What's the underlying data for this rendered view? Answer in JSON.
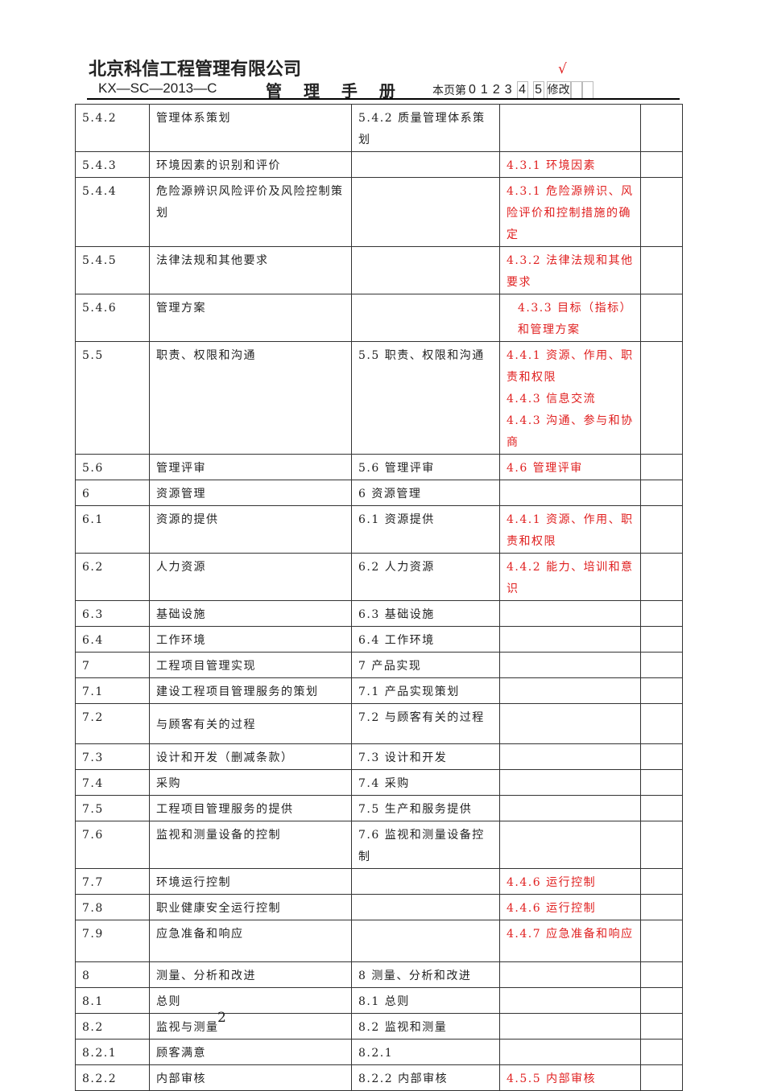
{
  "header": {
    "company": "北京科信工程管理有限公司",
    "code": "KX—SC—2013—C",
    "manual_title": "管 理 手 册",
    "revision_label": "本页第",
    "revision_digits": [
      "0",
      "1",
      "2",
      "3",
      "4",
      "5"
    ],
    "revision_suffix": "修改",
    "check_mark": "√"
  },
  "table": {
    "rows": [
      [
        "5.4.2",
        "管理体系策划",
        "5.4.2 质量管理体系策划",
        ""
      ],
      [
        "5.4.3",
        "环境因素的识别和评价",
        "",
        "4.3.1 环境因素"
      ],
      [
        "5.4.4",
        "危险源辨识风险评价及风险控制策划",
        "",
        "4.3.1 危险源辨识、风险评价和控制措施的确定"
      ],
      [
        "5.4.5",
        "法律法规和其他要求",
        "",
        "4.3.2 法律法规和其他要求"
      ],
      [
        "5.4.6",
        "管理方案",
        "",
        "4.3.3 目标（指标）和管理方案"
      ],
      [
        "5.5",
        "职责、权限和沟通",
        "5.5 职责、权限和沟通",
        "4.4.1 资源、作用、职责和权限\n4.4.3 信息交流\n4.4.3 沟通、参与和协商"
      ],
      [
        "5.6",
        "管理评审",
        "5.6 管理评审",
        "4.6 管理评审"
      ],
      [
        "6",
        "资源管理",
        "6 资源管理",
        ""
      ],
      [
        "6.1",
        "资源的提供",
        "6.1 资源提供",
        "4.4.1 资源、作用、职责和权限"
      ],
      [
        "6.2",
        "人力资源",
        "6.2 人力资源",
        "4.4.2 能力、培训和意识"
      ],
      [
        "6.3",
        "基础设施",
        "6.3 基础设施",
        ""
      ],
      [
        "6.4",
        "工作环境",
        "6.4 工作环境",
        ""
      ],
      [
        "7",
        "工程项目管理实现",
        "7 产品实现",
        ""
      ],
      [
        "7.1",
        "建设工程项目管理服务的策划",
        "7.1 产品实现策划",
        ""
      ],
      [
        "7.2",
        "与顾客有关的过程",
        "7.2 与顾客有关的过程",
        ""
      ],
      [
        "7.3",
        "设计和开发（删减条款）",
        "7.3 设计和开发",
        ""
      ],
      [
        "7.4",
        "采购",
        "7.4 采购",
        ""
      ],
      [
        "7.5",
        "工程项目管理服务的提供",
        "7.5 生产和服务提供",
        ""
      ],
      [
        "7.6",
        "监视和测量设备的控制",
        "7.6 监视和测量设备控制",
        ""
      ],
      [
        "7.7",
        "环境运行控制",
        "",
        "4.4.6 运行控制"
      ],
      [
        "7.8",
        "职业健康安全运行控制",
        "",
        "4.4.6 运行控制"
      ],
      [
        "7.9",
        "应急准备和响应",
        "",
        "4.4.7 应急准备和响应"
      ],
      [
        "8",
        "测量、分析和改进",
        "8 测量、分析和改进",
        ""
      ],
      [
        "8.1",
        "总则",
        "8.1 总则",
        ""
      ],
      [
        "8.2",
        "监视与测量",
        "8.2 监视和测量",
        ""
      ],
      [
        "8.2.1",
        "顾客满意",
        "8.2.1",
        ""
      ],
      [
        "8.2.2",
        "内部审核",
        "8.2.2 内部审核",
        "4.5.5 内部审核"
      ]
    ]
  },
  "page_number": "2",
  "colors": {
    "red_text": "#e02020",
    "check": "#e02020"
  }
}
